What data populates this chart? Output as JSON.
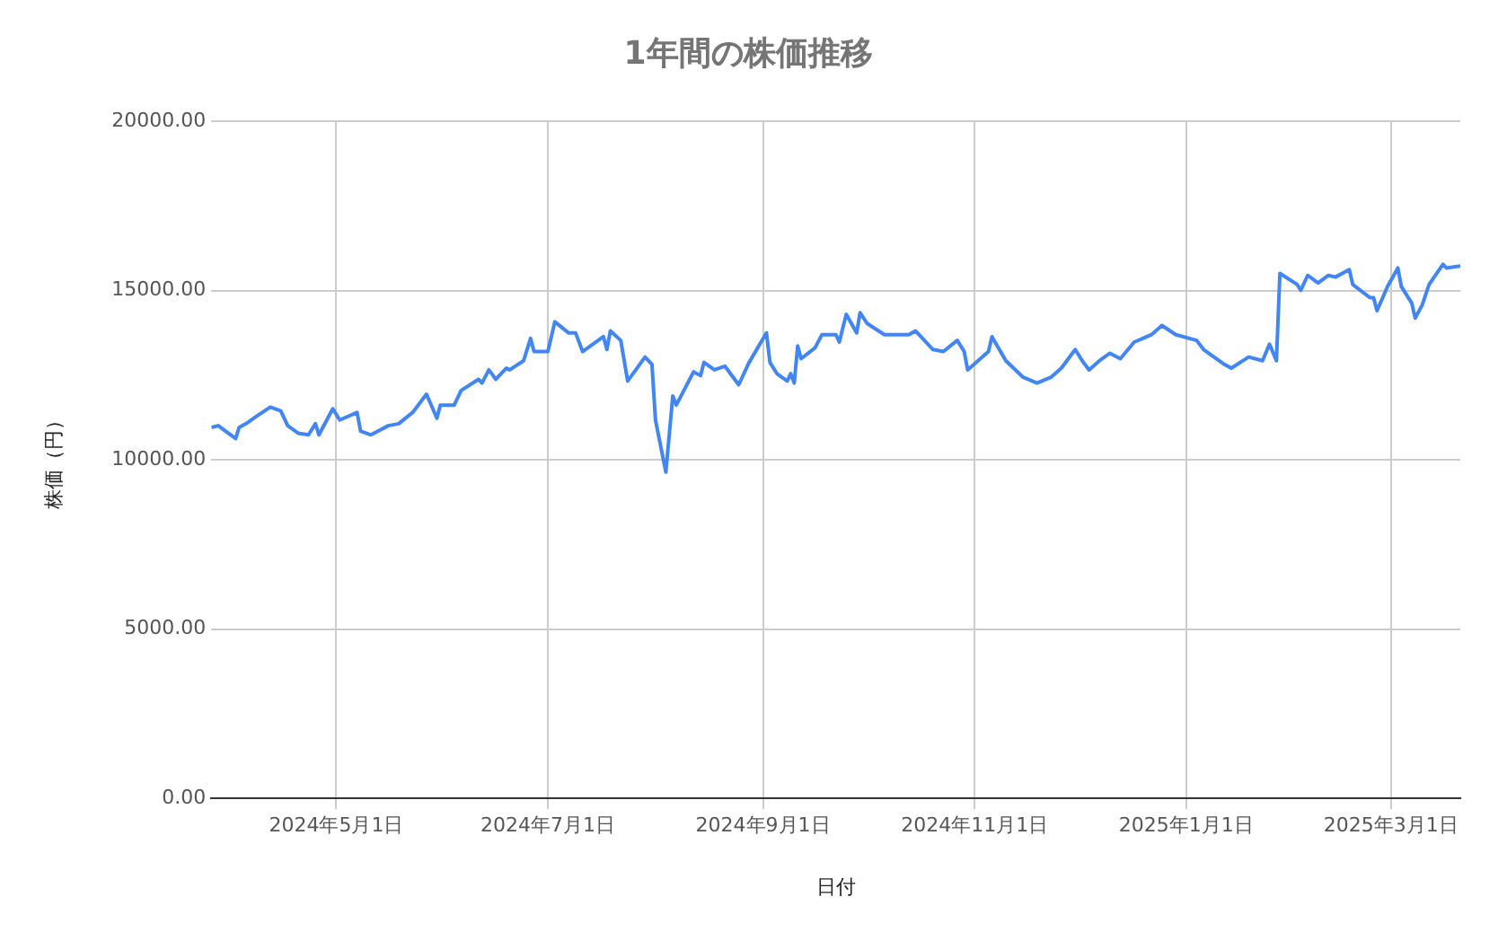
{
  "chart_data": {
    "type": "line",
    "title": "1年間の株価推移",
    "xlabel": "日付",
    "ylabel": "株価（円）",
    "x": [
      "2024-03-26",
      "2024-03-28",
      "2024-04-02",
      "2024-04-03",
      "2024-04-05",
      "2024-04-08",
      "2024-04-12",
      "2024-04-15",
      "2024-04-17",
      "2024-04-20",
      "2024-04-23",
      "2024-04-25",
      "2024-04-26",
      "2024-04-30",
      "2024-05-02",
      "2024-05-07",
      "2024-05-08",
      "2024-05-11",
      "2024-05-16",
      "2024-05-19",
      "2024-05-23",
      "2024-05-27",
      "2024-05-30",
      "2024-05-31",
      "2024-06-04",
      "2024-06-06",
      "2024-06-11",
      "2024-06-12",
      "2024-06-14",
      "2024-06-16",
      "2024-06-19",
      "2024-06-20",
      "2024-06-24",
      "2024-06-26",
      "2024-06-27",
      "2024-07-01",
      "2024-07-03",
      "2024-07-07",
      "2024-07-09",
      "2024-07-11",
      "2024-07-17",
      "2024-07-18",
      "2024-07-19",
      "2024-07-22",
      "2024-07-24",
      "2024-07-29",
      "2024-07-31",
      "2024-08-01",
      "2024-08-04",
      "2024-08-06",
      "2024-08-07",
      "2024-08-12",
      "2024-08-14",
      "2024-08-15",
      "2024-08-18",
      "2024-08-21",
      "2024-08-25",
      "2024-08-28",
      "2024-09-02",
      "2024-09-03",
      "2024-09-05",
      "2024-09-08",
      "2024-09-09",
      "2024-09-10",
      "2024-09-11",
      "2024-09-12",
      "2024-09-16",
      "2024-09-18",
      "2024-09-22",
      "2024-09-23",
      "2024-09-25",
      "2024-09-28",
      "2024-09-29",
      "2024-10-01",
      "2024-10-06",
      "2024-10-08",
      "2024-10-13",
      "2024-10-15",
      "2024-10-20",
      "2024-10-23",
      "2024-10-27",
      "2024-10-29",
      "2024-10-30",
      "2024-11-05",
      "2024-11-06",
      "2024-11-10",
      "2024-11-15",
      "2024-11-19",
      "2024-11-23",
      "2024-11-26",
      "2024-11-30",
      "2024-12-02",
      "2024-12-04",
      "2024-12-07",
      "2024-12-10",
      "2024-12-13",
      "2024-12-17",
      "2024-12-22",
      "2024-12-25",
      "2024-12-29",
      "2025-01-04",
      "2025-01-06",
      "2025-01-12",
      "2025-01-14",
      "2025-01-19",
      "2025-01-23",
      "2025-01-25",
      "2025-01-27",
      "2025-01-28",
      "2025-02-02",
      "2025-02-03",
      "2025-02-05",
      "2025-02-08",
      "2025-02-11",
      "2025-02-13",
      "2025-02-17",
      "2025-02-18",
      "2025-02-23",
      "2025-02-24",
      "2025-02-25",
      "2025-02-28",
      "2025-03-03",
      "2025-03-04",
      "2025-03-07",
      "2025-03-08",
      "2025-03-10",
      "2025-03-12",
      "2025-03-16",
      "2025-03-17",
      "2025-03-21"
    ],
    "series": [
      {
        "color": "#4285f4",
        "values": [
          10960,
          11010,
          10630,
          10960,
          11070,
          11290,
          11560,
          11450,
          11010,
          10790,
          10740,
          11070,
          10740,
          11510,
          11180,
          11400,
          10850,
          10740,
          11010,
          11070,
          11400,
          11940,
          11230,
          11620,
          11620,
          12050,
          12380,
          12270,
          12660,
          12380,
          12710,
          12660,
          12930,
          13590,
          13200,
          13200,
          14080,
          13750,
          13750,
          13200,
          13640,
          13260,
          13810,
          13530,
          12330,
          13040,
          12820,
          11180,
          9640,
          11890,
          11620,
          12600,
          12490,
          12880,
          12660,
          12770,
          12220,
          12880,
          13750,
          12880,
          12550,
          12330,
          12550,
          12270,
          13370,
          12990,
          13310,
          13700,
          13700,
          13480,
          14300,
          13750,
          14350,
          14030,
          13700,
          13700,
          13700,
          13810,
          13260,
          13200,
          13530,
          13200,
          12660,
          13200,
          13640,
          12930,
          12440,
          12270,
          12440,
          12710,
          13260,
          12930,
          12660,
          12930,
          13150,
          12990,
          13480,
          13700,
          13970,
          13700,
          13530,
          13260,
          12820,
          12710,
          13040,
          12930,
          13420,
          12930,
          15510,
          15180,
          15010,
          15450,
          15230,
          15450,
          15400,
          15620,
          15180,
          14790,
          14790,
          14410,
          15120,
          15670,
          15120,
          14630,
          14190,
          14570,
          15180,
          15780,
          15670,
          15730
        ]
      }
    ],
    "xlim": [
      "2024-03-26",
      "2025-03-21"
    ],
    "xticks": [
      {
        "value": "2024-05-01",
        "label": "2024年5月1日"
      },
      {
        "value": "2024-07-01",
        "label": "2024年7月1日"
      },
      {
        "value": "2024-09-01",
        "label": "2024年9月1日"
      },
      {
        "value": "2024-11-01",
        "label": "2024年11月1日"
      },
      {
        "value": "2025-01-01",
        "label": "2025年1月1日"
      },
      {
        "value": "2025-03-01",
        "label": "2025年3月1日"
      }
    ],
    "ylim": [
      0,
      20000
    ],
    "yticks": [
      {
        "value": 0,
        "label": "0.00"
      },
      {
        "value": 5000,
        "label": "5000.00"
      },
      {
        "value": 10000,
        "label": "10000.00"
      },
      {
        "value": 15000,
        "label": "15000.00"
      },
      {
        "value": 20000,
        "label": "20000.00"
      }
    ],
    "grid": true,
    "legend": false,
    "marker": "none",
    "line_style": "solid"
  }
}
